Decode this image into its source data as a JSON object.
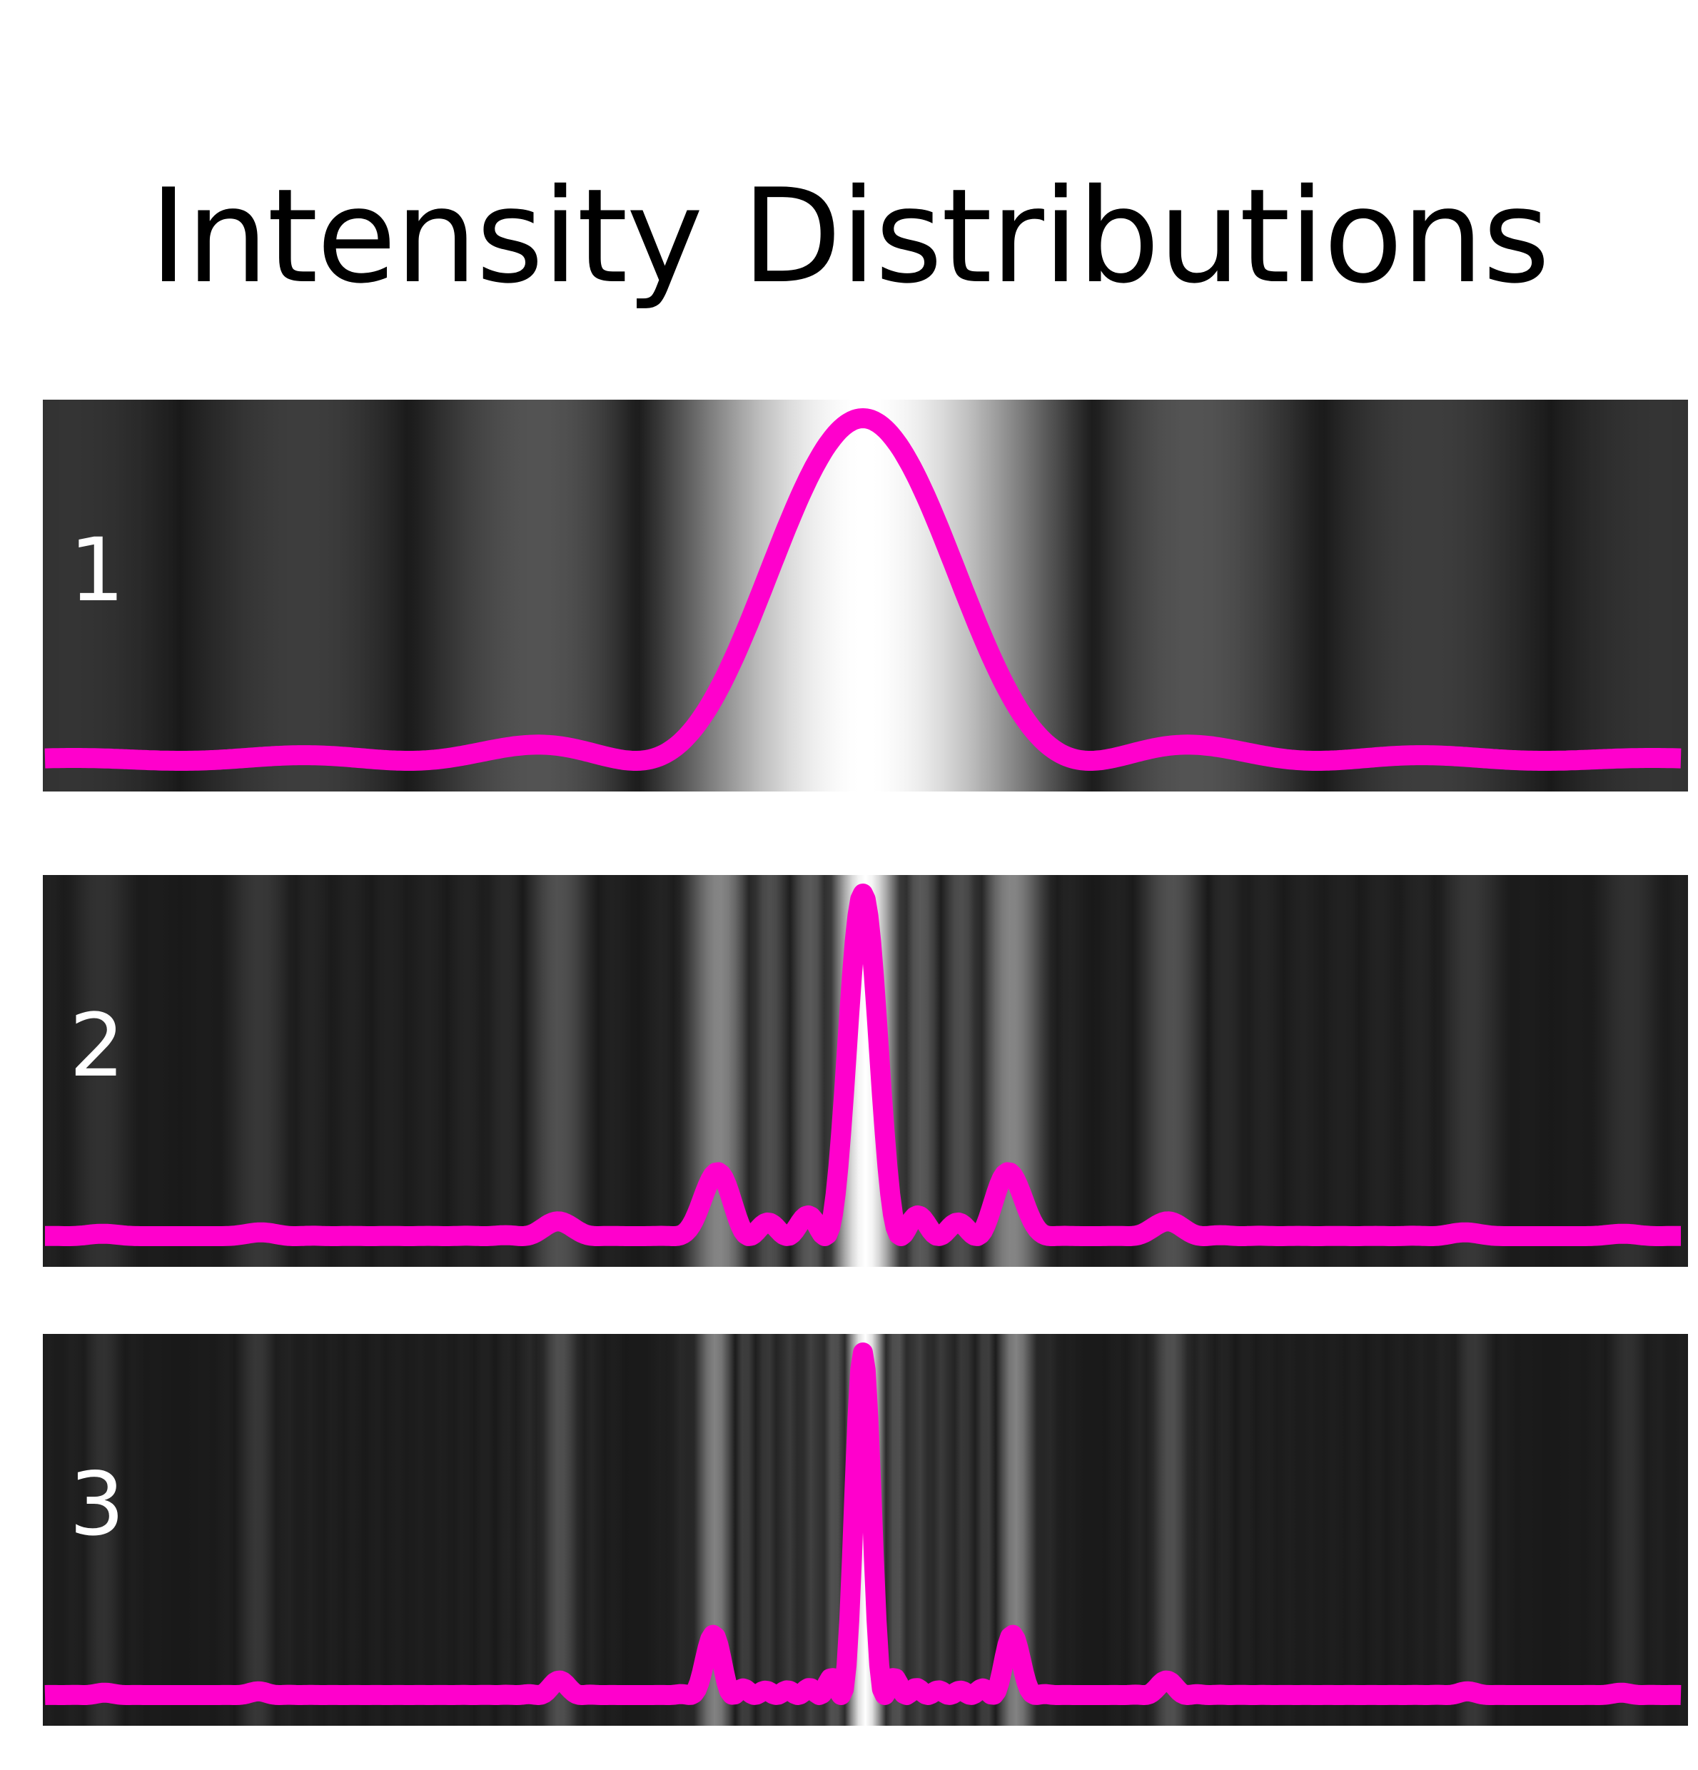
{
  "title": "Intensity Distributions",
  "colors": {
    "curve": "#FF00CC",
    "background": "#FFFFFF",
    "label": "#FFFFFF",
    "title": "#000000"
  },
  "panels": [
    {
      "label": "1",
      "envelope_zeros": 3.6,
      "fringes": 1
    },
    {
      "label": "2",
      "envelope_zeros": 3.6,
      "fringes": 4
    },
    {
      "label": "3",
      "envelope_zeros": 3.6,
      "fringes": 7
    }
  ]
}
